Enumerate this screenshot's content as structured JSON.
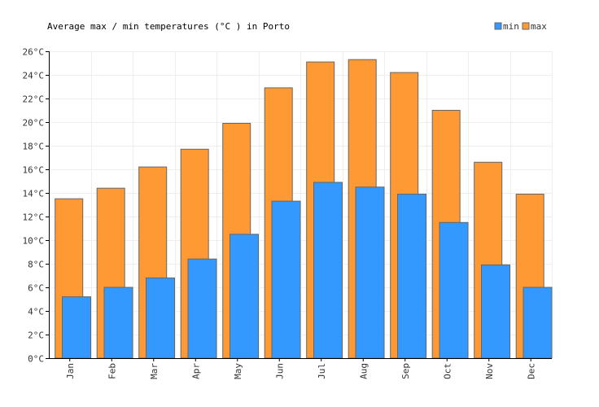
{
  "chart_data": {
    "type": "bar",
    "title": "Average max / min temperatures (°C ) in Porto",
    "categories": [
      "Jan",
      "Feb",
      "Mar",
      "Apr",
      "May",
      "Jun",
      "Jul",
      "Aug",
      "Sep",
      "Oct",
      "Nov",
      "Dec"
    ],
    "series": [
      {
        "name": "max",
        "color": "#ff9933",
        "values": [
          13.5,
          14.4,
          16.2,
          17.7,
          19.9,
          22.9,
          25.1,
          25.3,
          24.2,
          21.0,
          16.6,
          13.9
        ]
      },
      {
        "name": "min",
        "color": "#3399ff",
        "values": [
          5.2,
          6.0,
          6.8,
          8.4,
          10.5,
          13.3,
          14.9,
          14.5,
          13.9,
          11.5,
          7.9,
          6.0
        ]
      }
    ],
    "ylim": [
      0,
      26
    ],
    "y_ticks": [
      "0°C",
      "2°C",
      "4°C",
      "6°C",
      "8°C",
      "10°C",
      "12°C",
      "14°C",
      "16°C",
      "18°C",
      "20°C",
      "22°C",
      "24°C",
      "26°C"
    ],
    "xlabel": "",
    "ylabel": "",
    "grid": true,
    "legend": "top-right"
  }
}
